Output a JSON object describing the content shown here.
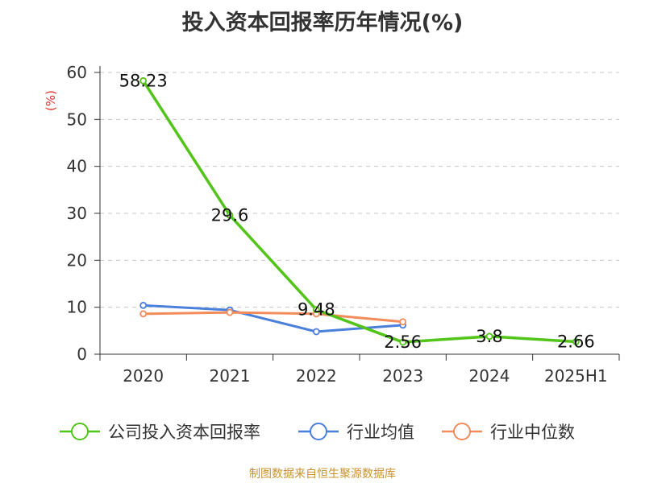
{
  "chart_data": {
    "type": "line",
    "title": "投入资本回报率历年情况(%)",
    "ylabel": "(%)",
    "xlabel": "",
    "categories": [
      "2020",
      "2021",
      "2022",
      "2023",
      "2024",
      "2025H1"
    ],
    "ylim": [
      0,
      60
    ],
    "yticks": [
      0,
      10,
      20,
      30,
      40,
      50,
      60
    ],
    "grid": true,
    "legend_position": "bottom",
    "series": [
      {
        "name": "公司投入资本回报率",
        "color": "#52c41a",
        "values": [
          58.23,
          29.6,
          9.48,
          2.56,
          3.8,
          2.66
        ],
        "labels": [
          "58.23",
          "29.6",
          "9.48",
          "2.56",
          "3.8",
          "2.66"
        ]
      },
      {
        "name": "行业均值",
        "color": "#4a7fdc",
        "values": [
          10.4,
          9.4,
          4.8,
          6.2,
          null,
          null
        ]
      },
      {
        "name": "行业中位数",
        "color": "#f28c5b",
        "values": [
          8.6,
          8.9,
          8.6,
          6.9,
          null,
          null
        ]
      }
    ]
  },
  "source": "制图数据来自恒生聚源数据库"
}
